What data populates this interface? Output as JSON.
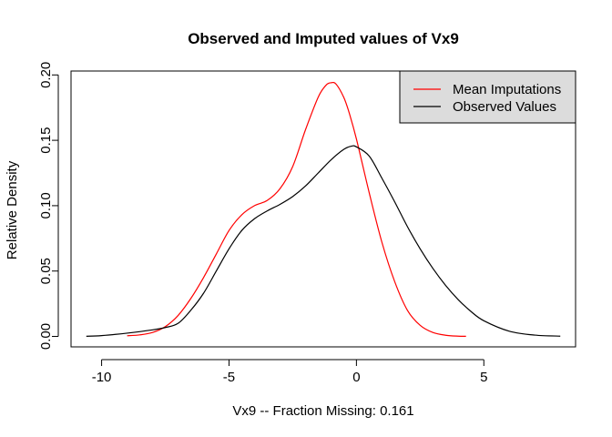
{
  "chart_data": {
    "type": "line",
    "title": "Observed and Imputed values of Vx9",
    "xlabel": "Vx9   --  Fraction Missing: 0.161",
    "ylabel": "Relative Density",
    "xlim": [
      -11.2,
      8.6
    ],
    "ylim": [
      -0.008,
      0.203
    ],
    "x_ticks": [
      -10,
      -5,
      0,
      5
    ],
    "x_tick_labels": [
      "-10",
      "-5",
      "0",
      "5"
    ],
    "y_ticks": [
      0.0,
      0.05,
      0.1,
      0.15,
      0.2
    ],
    "y_tick_labels": [
      "0.00",
      "0.05",
      "0.10",
      "0.15",
      "0.20"
    ],
    "grid": false,
    "legend_position": "top-right",
    "legend_background": "#dcdcdc",
    "series": [
      {
        "name": "Mean Imputations",
        "color": "#ff0000",
        "x": [
          -9.0,
          -8.5,
          -8.0,
          -7.5,
          -7.0,
          -6.5,
          -6.0,
          -5.5,
          -5.0,
          -4.5,
          -4.0,
          -3.5,
          -3.0,
          -2.5,
          -2.0,
          -1.5,
          -1.2,
          -1.0,
          -0.8,
          -0.5,
          -0.3,
          0.0,
          0.5,
          1.0,
          1.5,
          2.0,
          2.5,
          3.0,
          3.5,
          4.0,
          4.3
        ],
        "y": [
          0.0005,
          0.0012,
          0.003,
          0.0075,
          0.016,
          0.029,
          0.045,
          0.063,
          0.081,
          0.093,
          0.1,
          0.104,
          0.113,
          0.13,
          0.158,
          0.183,
          0.192,
          0.194,
          0.193,
          0.183,
          0.172,
          0.151,
          0.11,
          0.072,
          0.042,
          0.02,
          0.0085,
          0.003,
          0.0009,
          0.0002,
          0.0001
        ]
      },
      {
        "name": "Observed Values",
        "color": "#000000",
        "x": [
          -10.6,
          -10.0,
          -9.0,
          -8.0,
          -7.5,
          -7.0,
          -6.5,
          -6.0,
          -5.5,
          -5.0,
          -4.5,
          -4.0,
          -3.5,
          -3.0,
          -2.5,
          -2.0,
          -1.5,
          -1.0,
          -0.5,
          -0.2,
          0.0,
          0.5,
          1.0,
          1.5,
          2.0,
          2.5,
          3.0,
          3.5,
          4.0,
          4.5,
          5.0,
          6.0,
          7.0,
          8.0
        ],
        "y": [
          0.0001,
          0.0006,
          0.0025,
          0.005,
          0.0068,
          0.01,
          0.02,
          0.033,
          0.05,
          0.067,
          0.081,
          0.09,
          0.096,
          0.101,
          0.107,
          0.115,
          0.125,
          0.135,
          0.143,
          0.1455,
          0.145,
          0.138,
          0.121,
          0.103,
          0.084,
          0.067,
          0.052,
          0.039,
          0.028,
          0.019,
          0.012,
          0.004,
          0.001,
          0.0002
        ]
      }
    ]
  }
}
